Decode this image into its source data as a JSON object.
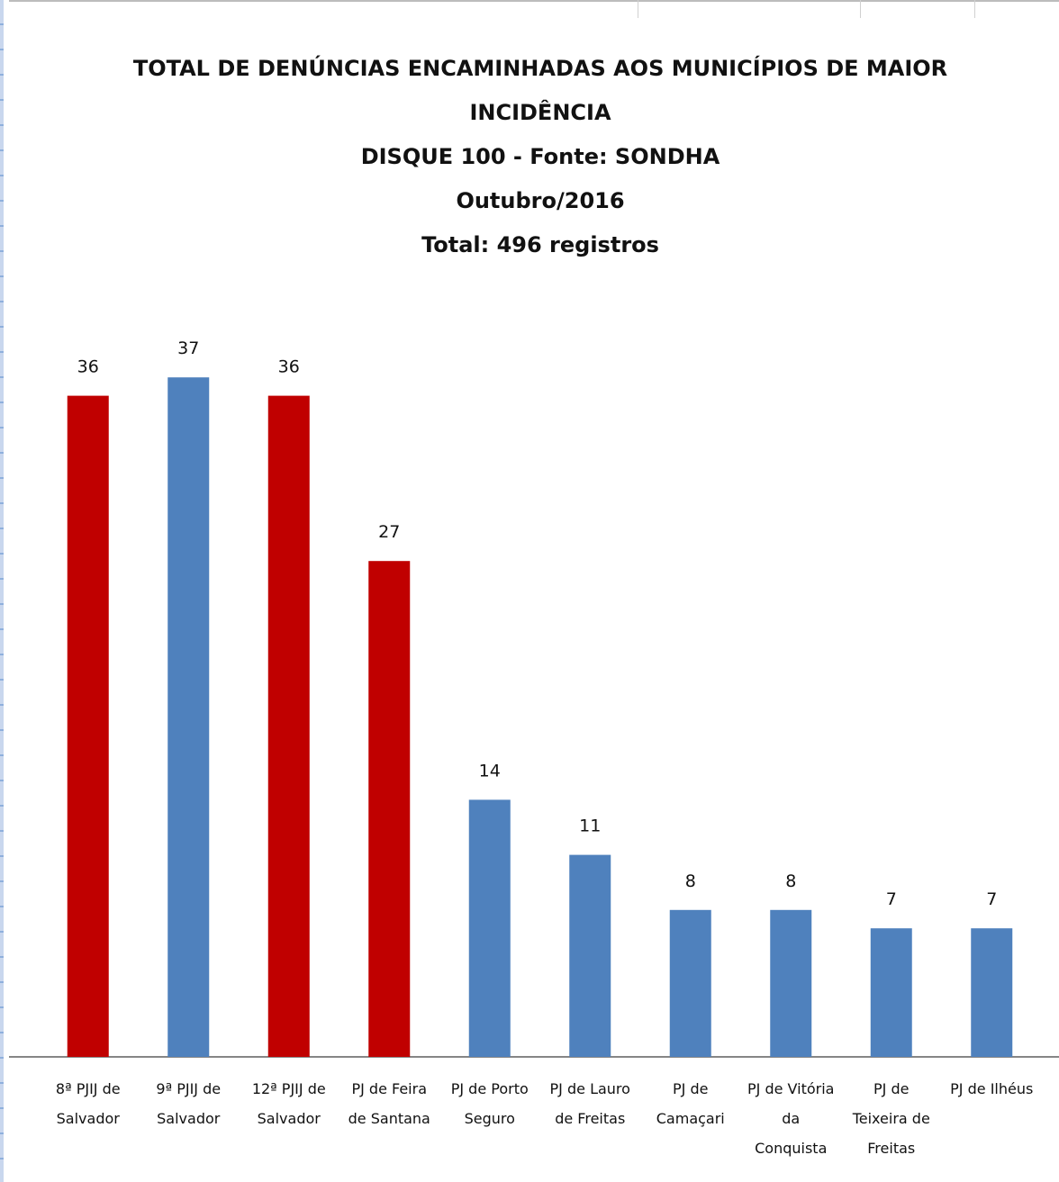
{
  "chart_data": {
    "type": "bar",
    "title_lines": [
      "TOTAL DE DENÚNCIAS ENCAMINHADAS AOS MUNICÍPIOS DE MAIOR",
      "INCIDÊNCIA",
      "DISQUE 100 - Fonte: SONDHA",
      "Outubro/2016",
      "Total: 496 registros"
    ],
    "categories": [
      [
        "8ª PJIJ de",
        "Salvador"
      ],
      [
        "9ª PJIJ de",
        "Salvador"
      ],
      [
        "12ª PJIJ de",
        "Salvador"
      ],
      [
        "PJ de Feira",
        "de Santana"
      ],
      [
        "PJ de Porto",
        "Seguro"
      ],
      [
        "PJ de Lauro",
        "de Freitas"
      ],
      [
        "PJ de",
        "Camaçari"
      ],
      [
        "PJ de Vitória",
        "da",
        "Conquista"
      ],
      [
        "PJ de",
        "Teixeira de",
        "Freitas"
      ],
      [
        "PJ de Ilhéus"
      ]
    ],
    "values": [
      36,
      37,
      36,
      27,
      14,
      11,
      8,
      8,
      7,
      7
    ],
    "bar_colors": [
      "#c00000",
      "#4f81bd",
      "#c00000",
      "#c00000",
      "#4f81bd",
      "#4f81bd",
      "#4f81bd",
      "#4f81bd",
      "#4f81bd",
      "#4f81bd"
    ],
    "data_labels": true,
    "grid": false,
    "legend": "none",
    "xlabel": "",
    "ylabel": "",
    "ylim": [
      0,
      40
    ]
  }
}
